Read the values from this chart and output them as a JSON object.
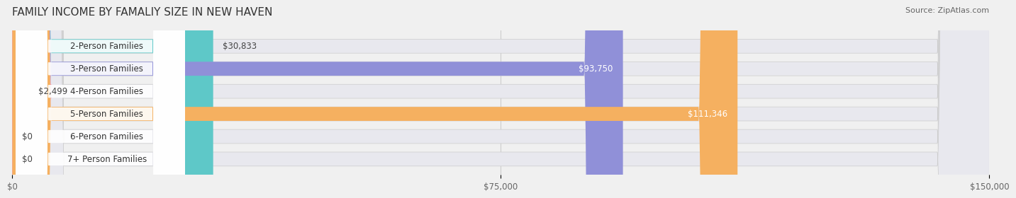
{
  "title": "FAMILY INCOME BY FAMALIY SIZE IN NEW HAVEN",
  "source": "Source: ZipAtlas.com",
  "categories": [
    "2-Person Families",
    "3-Person Families",
    "4-Person Families",
    "5-Person Families",
    "6-Person Families",
    "7+ Person Families"
  ],
  "values": [
    30833,
    93750,
    2499,
    111346,
    0,
    0
  ],
  "bar_colors": [
    "#5ec8c8",
    "#9090d8",
    "#f0a0b8",
    "#f5b060",
    "#f0a0b8",
    "#a0c8e8"
  ],
  "label_colors": [
    "#444444",
    "#ffffff",
    "#444444",
    "#ffffff",
    "#444444",
    "#444444"
  ],
  "bg_color": "#f0f0f0",
  "bar_bg_color": "#e8e8ee",
  "xlim": [
    0,
    150000
  ],
  "xtick_values": [
    0,
    75000,
    150000
  ],
  "xtick_labels": [
    "$0",
    "$75,000",
    "$150,000"
  ],
  "value_labels": [
    "$30,833",
    "$93,750",
    "$2,499",
    "$111,346",
    "$0",
    "$0"
  ],
  "title_fontsize": 11,
  "source_fontsize": 8,
  "bar_height": 0.62,
  "bar_label_fontsize": 8.5,
  "category_fontsize": 8.5
}
